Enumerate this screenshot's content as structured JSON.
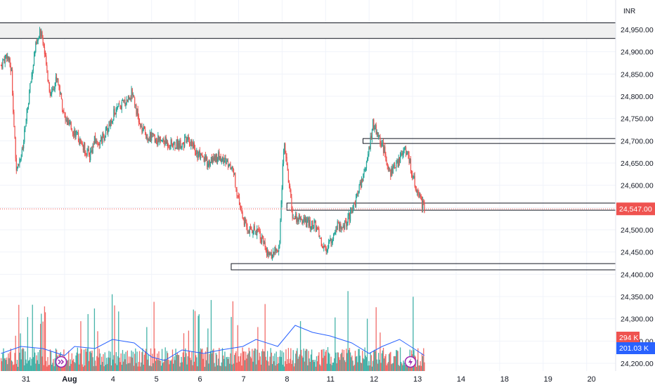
{
  "currency_label": "INR",
  "colors": {
    "up": "#26a69a",
    "down": "#ef5350",
    "volume_ma": "#2962ff",
    "zone_fill": "#f0f0f0",
    "grid": "#f0f3fa",
    "axis_text": "#131722",
    "price_line": "#ef5350"
  },
  "icons": {
    "event_1": "arrows-right-icon",
    "event_2": "lightning-icon"
  },
  "chart_data": {
    "type": "candlestick",
    "price_axis": {
      "ylim": [
        24175,
        24990
      ],
      "ticks": [
        24200,
        24250,
        24300,
        24350,
        24400,
        24450,
        24500,
        24550,
        24600,
        24650,
        24700,
        24750,
        24800,
        24850,
        24900,
        24950
      ],
      "tick_labels": [
        "24,200.00",
        "24,250.00",
        "24,300.00",
        "24,350.00",
        "24,400.00",
        "24,450.00",
        "24,500.00",
        "24,550.00",
        "24,600.00",
        "24,650.00",
        "24,700.00",
        "24,750.00",
        "24,800.00",
        "24,850.00",
        "24,900.00",
        "24,950.00"
      ]
    },
    "x_axis": {
      "labels": [
        "31",
        "Aug",
        "4",
        "5",
        "6",
        "7",
        "8",
        "11",
        "12",
        "13",
        "14",
        "18",
        "19",
        "20"
      ],
      "positions": [
        0,
        1,
        2,
        3,
        4,
        5,
        6,
        7,
        8,
        9,
        10,
        11,
        12,
        13
      ]
    },
    "last_price": {
      "value": 24547,
      "label": "24,547.00"
    },
    "volume_badges": {
      "last": "294 K",
      "ma": "201.03 K"
    },
    "zones": [
      {
        "name": "supply-zone-top",
        "from_x": -0.6,
        "to_x": 13.8,
        "y_low": 24930,
        "y_high": 24965,
        "filled": true
      },
      {
        "name": "resistance-zone-mid",
        "from_x": 7.86,
        "to_x": 13.8,
        "y_low": 24694,
        "y_high": 24705,
        "filled": false
      },
      {
        "name": "support-resistance-zone",
        "from_x": 6.11,
        "to_x": 13.8,
        "y_low": 24544,
        "y_high": 24560,
        "filled": false
      },
      {
        "name": "demand-zone-bottom",
        "from_x": 4.83,
        "to_x": 13.8,
        "y_low": 24410,
        "y_high": 24424,
        "filled": false
      }
    ],
    "path_points": [
      [
        -0.46,
        24870
      ],
      [
        -0.33,
        24895
      ],
      [
        -0.22,
        24855
      ],
      [
        -0.12,
        24642
      ],
      [
        0.03,
        24675
      ],
      [
        0.18,
        24800
      ],
      [
        0.32,
        24905
      ],
      [
        0.47,
        24950
      ],
      [
        0.56,
        24880
      ],
      [
        0.67,
        24805
      ],
      [
        0.83,
        24845
      ],
      [
        1.01,
        24745
      ],
      [
        1.23,
        24720
      ],
      [
        1.37,
        24695
      ],
      [
        1.57,
        24665
      ],
      [
        1.69,
        24700
      ],
      [
        1.81,
        24695
      ],
      [
        1.96,
        24720
      ],
      [
        2.12,
        24760
      ],
      [
        2.41,
        24790
      ],
      [
        2.57,
        24810
      ],
      [
        2.73,
        24730
      ],
      [
        2.92,
        24710
      ],
      [
        3.22,
        24700
      ],
      [
        3.52,
        24690
      ],
      [
        3.87,
        24700
      ],
      [
        4.12,
        24660
      ],
      [
        4.31,
        24650
      ],
      [
        4.48,
        24665
      ],
      [
        4.61,
        24660
      ],
      [
        4.87,
        24640
      ],
      [
        5.0,
        24560
      ],
      [
        5.19,
        24500
      ],
      [
        5.46,
        24500
      ],
      [
        5.67,
        24440
      ],
      [
        5.94,
        24460
      ],
      [
        6.01,
        24640
      ],
      [
        6.05,
        24700
      ],
      [
        6.24,
        24530
      ],
      [
        6.46,
        24520
      ],
      [
        6.75,
        24510
      ],
      [
        6.99,
        24450
      ],
      [
        7.26,
        24510
      ],
      [
        7.43,
        24510
      ],
      [
        7.59,
        24535
      ],
      [
        7.67,
        24560
      ],
      [
        7.86,
        24620
      ],
      [
        8.0,
        24680
      ],
      [
        8.08,
        24740
      ],
      [
        8.3,
        24690
      ],
      [
        8.48,
        24630
      ],
      [
        8.62,
        24640
      ],
      [
        8.82,
        24690
      ],
      [
        8.91,
        24660
      ],
      [
        9.07,
        24595
      ],
      [
        9.2,
        24560
      ],
      [
        9.27,
        24547
      ]
    ],
    "volume_ma_points": [
      [
        -0.46,
        25
      ],
      [
        0.0,
        35
      ],
      [
        0.5,
        32
      ],
      [
        1.0,
        22
      ],
      [
        1.23,
        35
      ],
      [
        1.7,
        32
      ],
      [
        2.1,
        45
      ],
      [
        2.6,
        40
      ],
      [
        3.0,
        20
      ],
      [
        3.3,
        15
      ],
      [
        3.7,
        30
      ],
      [
        4.2,
        25
      ],
      [
        4.6,
        30
      ],
      [
        5.1,
        35
      ],
      [
        5.4,
        45
      ],
      [
        5.9,
        35
      ],
      [
        6.3,
        65
      ],
      [
        6.7,
        55
      ],
      [
        7.1,
        50
      ],
      [
        7.6,
        40
      ],
      [
        8.0,
        25
      ],
      [
        8.3,
        35
      ],
      [
        8.7,
        45
      ],
      [
        8.95,
        35
      ],
      [
        9.2,
        25
      ],
      [
        9.27,
        22
      ]
    ]
  }
}
